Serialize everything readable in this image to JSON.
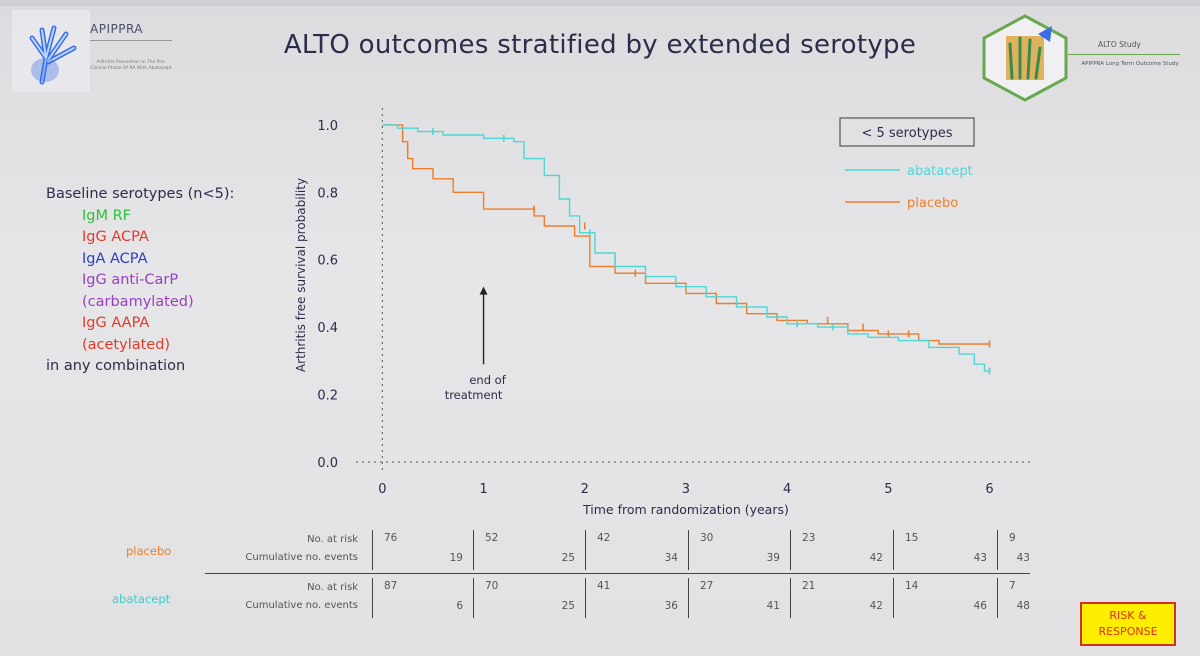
{
  "slide": {
    "title": "ALTO outcomes stratified by extended serotype",
    "logo_left": {
      "brand": "APIPPRA",
      "tagline": "Arthritis Prevention In The Pre-Clinical Phase Of RA With Abatacept"
    },
    "logo_right": {
      "name": "ALTO Study",
      "subtitle": "APIPPRA Long Term Outcome Study"
    },
    "badge": "RISK & RESPONSE"
  },
  "serotypes": {
    "heading": "Baseline serotypes (n<5):",
    "items": [
      {
        "text": "IgM RF",
        "color": "#2fbf3a"
      },
      {
        "text": "IgG ACPA",
        "color": "#e23a2a"
      },
      {
        "text": "IgA ACPA",
        "color": "#2b3fc4"
      },
      {
        "text": "IgG anti-CarP",
        "color": "#9a3fc0"
      },
      {
        "text": "(carbamylated)",
        "color": "#9a3fc0"
      },
      {
        "text": "IgG AAPA",
        "color": "#e23a2a"
      },
      {
        "text": "(acetylated)",
        "color": "#e23a2a"
      }
    ],
    "footer": "in any combination"
  },
  "chart_data": {
    "type": "line",
    "subtype": "kaplan-meier step",
    "xlabel": "Time from randomization (years)",
    "ylabel": "Arthritis free survival probability",
    "xlim": [
      -0.3,
      6.4
    ],
    "ylim": [
      0.0,
      1.05
    ],
    "xticks": [
      0,
      1,
      2,
      3,
      4,
      5,
      6
    ],
    "yticks": [
      "0.0",
      "0.2",
      "0.4",
      "0.6",
      "0.8",
      "1.0"
    ],
    "stratum_label": "< 5 serotypes",
    "annotation": {
      "text": [
        "end of",
        "treatment"
      ],
      "x": 1.0,
      "y_from": 0.29,
      "y_to": 0.52
    },
    "legend_position": "top-right",
    "series": [
      {
        "name": "abatacept",
        "color": "#4fd6d6",
        "points": [
          [
            0,
            1.0
          ],
          [
            0.15,
            1.0
          ],
          [
            0.15,
            0.99
          ],
          [
            0.35,
            0.99
          ],
          [
            0.35,
            0.98
          ],
          [
            0.6,
            0.98
          ],
          [
            0.6,
            0.97
          ],
          [
            1.0,
            0.97
          ],
          [
            1.0,
            0.96
          ],
          [
            1.3,
            0.96
          ],
          [
            1.3,
            0.95
          ],
          [
            1.4,
            0.95
          ],
          [
            1.4,
            0.9
          ],
          [
            1.6,
            0.9
          ],
          [
            1.6,
            0.85
          ],
          [
            1.75,
            0.85
          ],
          [
            1.75,
            0.78
          ],
          [
            1.85,
            0.78
          ],
          [
            1.85,
            0.73
          ],
          [
            1.95,
            0.73
          ],
          [
            1.95,
            0.68
          ],
          [
            2.1,
            0.68
          ],
          [
            2.1,
            0.62
          ],
          [
            2.3,
            0.62
          ],
          [
            2.3,
            0.58
          ],
          [
            2.6,
            0.58
          ],
          [
            2.6,
            0.55
          ],
          [
            2.9,
            0.55
          ],
          [
            2.9,
            0.52
          ],
          [
            3.2,
            0.52
          ],
          [
            3.2,
            0.49
          ],
          [
            3.5,
            0.49
          ],
          [
            3.5,
            0.46
          ],
          [
            3.8,
            0.46
          ],
          [
            3.8,
            0.43
          ],
          [
            4.0,
            0.43
          ],
          [
            4.0,
            0.41
          ],
          [
            4.3,
            0.41
          ],
          [
            4.3,
            0.4
          ],
          [
            4.6,
            0.4
          ],
          [
            4.6,
            0.38
          ],
          [
            4.8,
            0.38
          ],
          [
            4.8,
            0.37
          ],
          [
            5.1,
            0.37
          ],
          [
            5.1,
            0.36
          ],
          [
            5.4,
            0.36
          ],
          [
            5.4,
            0.34
          ],
          [
            5.7,
            0.34
          ],
          [
            5.7,
            0.32
          ],
          [
            5.85,
            0.32
          ],
          [
            5.85,
            0.29
          ],
          [
            5.95,
            0.29
          ],
          [
            5.95,
            0.27
          ],
          [
            6.0,
            0.27
          ]
        ],
        "censor": [
          [
            0.5,
            0.98
          ],
          [
            1.2,
            0.96
          ],
          [
            2.05,
            0.68
          ],
          [
            2.3,
            0.6
          ],
          [
            4.1,
            0.41
          ],
          [
            4.45,
            0.4
          ],
          [
            6.0,
            0.27
          ]
        ]
      },
      {
        "name": "placebo",
        "color": "#ef7d2b",
        "points": [
          [
            0,
            1.0
          ],
          [
            0.2,
            1.0
          ],
          [
            0.2,
            0.95
          ],
          [
            0.25,
            0.95
          ],
          [
            0.25,
            0.9
          ],
          [
            0.3,
            0.9
          ],
          [
            0.3,
            0.87
          ],
          [
            0.5,
            0.87
          ],
          [
            0.5,
            0.84
          ],
          [
            0.7,
            0.84
          ],
          [
            0.7,
            0.8
          ],
          [
            1.0,
            0.8
          ],
          [
            1.0,
            0.75
          ],
          [
            1.5,
            0.75
          ],
          [
            1.5,
            0.73
          ],
          [
            1.5,
            0.73
          ],
          [
            1.6,
            0.73
          ],
          [
            1.6,
            0.7
          ],
          [
            1.9,
            0.7
          ],
          [
            1.9,
            0.67
          ],
          [
            2.05,
            0.67
          ],
          [
            2.05,
            0.58
          ],
          [
            2.3,
            0.58
          ],
          [
            2.3,
            0.56
          ],
          [
            2.6,
            0.56
          ],
          [
            2.6,
            0.53
          ],
          [
            3.0,
            0.53
          ],
          [
            3.0,
            0.5
          ],
          [
            3.3,
            0.5
          ],
          [
            3.3,
            0.47
          ],
          [
            3.6,
            0.47
          ],
          [
            3.6,
            0.44
          ],
          [
            3.9,
            0.44
          ],
          [
            3.9,
            0.42
          ],
          [
            4.2,
            0.42
          ],
          [
            4.2,
            0.41
          ],
          [
            4.6,
            0.41
          ],
          [
            4.6,
            0.39
          ],
          [
            4.9,
            0.39
          ],
          [
            4.9,
            0.38
          ],
          [
            5.3,
            0.38
          ],
          [
            5.3,
            0.36
          ],
          [
            5.5,
            0.36
          ],
          [
            5.5,
            0.35
          ],
          [
            6.0,
            0.35
          ]
        ],
        "censor": [
          [
            0.25,
            0.93
          ],
          [
            1.5,
            0.75
          ],
          [
            2.0,
            0.7
          ],
          [
            2.5,
            0.56
          ],
          [
            4.4,
            0.42
          ],
          [
            4.75,
            0.4
          ],
          [
            5.0,
            0.38
          ],
          [
            5.2,
            0.38
          ],
          [
            6.0,
            0.35
          ]
        ]
      }
    ],
    "risk_table": {
      "row_labels": [
        "No. at risk",
        "Cumulative no. events"
      ],
      "groups": [
        {
          "name": "placebo",
          "color": "#ef7d2b",
          "at_risk": [
            "76",
            "52",
            "42",
            "30",
            "23",
            "15",
            "9"
          ],
          "events": [
            "19",
            "25",
            "34",
            "39",
            "42",
            "43",
            "43"
          ]
        },
        {
          "name": "abatacept",
          "color": "#38cfcf",
          "at_risk": [
            "87",
            "70",
            "41",
            "27",
            "21",
            "14",
            "7"
          ],
          "events": [
            "6",
            "25",
            "36",
            "41",
            "42",
            "46",
            "48"
          ]
        }
      ]
    }
  }
}
